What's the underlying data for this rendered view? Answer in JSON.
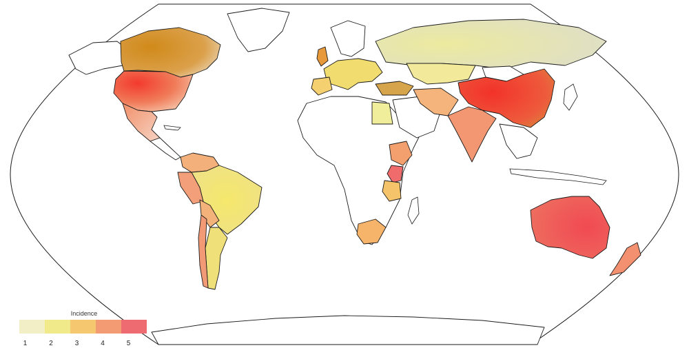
{
  "legend": {
    "title": "Incidence",
    "ticks": [
      "1",
      "2",
      "3",
      "4",
      "5"
    ],
    "colors": [
      "#f2efc6",
      "#f1ea8a",
      "#f5c870",
      "#f39b73",
      "#ee6b72"
    ]
  },
  "map": {
    "projection": "robinson",
    "no_data_color": "#ffffff",
    "border_color": "#1a1a1a",
    "regions": [
      {
        "name": "Canada",
        "level": 3,
        "color": "#d99a2b"
      },
      {
        "name": "United States",
        "level": 5,
        "color": "#f05a4a"
      },
      {
        "name": "Mexico",
        "level": 4,
        "color": "#f4a07a"
      },
      {
        "name": "Brazil",
        "level": 2,
        "color": "#f0e27a"
      },
      {
        "name": "Peru",
        "level": 4,
        "color": "#f39f7a"
      },
      {
        "name": "Argentina",
        "level": 2,
        "color": "#f0e07a"
      },
      {
        "name": "Chile",
        "level": 4,
        "color": "#f29a76"
      },
      {
        "name": "Russia",
        "level": 1,
        "color": "#e7e6c8"
      },
      {
        "name": "Kazakhstan",
        "level": 2,
        "color": "#f2ea9a"
      },
      {
        "name": "Europe",
        "level": 2,
        "color": "#f1dc70"
      },
      {
        "name": "Turkey",
        "level": 3,
        "color": "#d6a44a"
      },
      {
        "name": "Iran",
        "level": 3,
        "color": "#f6b47d"
      },
      {
        "name": "China",
        "level": 5,
        "color": "#f04b3a"
      },
      {
        "name": "India",
        "level": 4,
        "color": "#f39672"
      },
      {
        "name": "Egypt",
        "level": 1,
        "color": "#f0ee9a"
      },
      {
        "name": "Ethiopia",
        "level": 4,
        "color": "#f3a06e"
      },
      {
        "name": "Kenya",
        "level": 5,
        "color": "#f06b6b"
      },
      {
        "name": "Tanzania",
        "level": 3,
        "color": "#f5c46a"
      },
      {
        "name": "South Africa",
        "level": 3,
        "color": "#f5b46a"
      },
      {
        "name": "Australia",
        "level": 5,
        "color": "#ee5a55"
      },
      {
        "name": "New Zealand",
        "level": 4,
        "color": "#f39070"
      }
    ]
  }
}
